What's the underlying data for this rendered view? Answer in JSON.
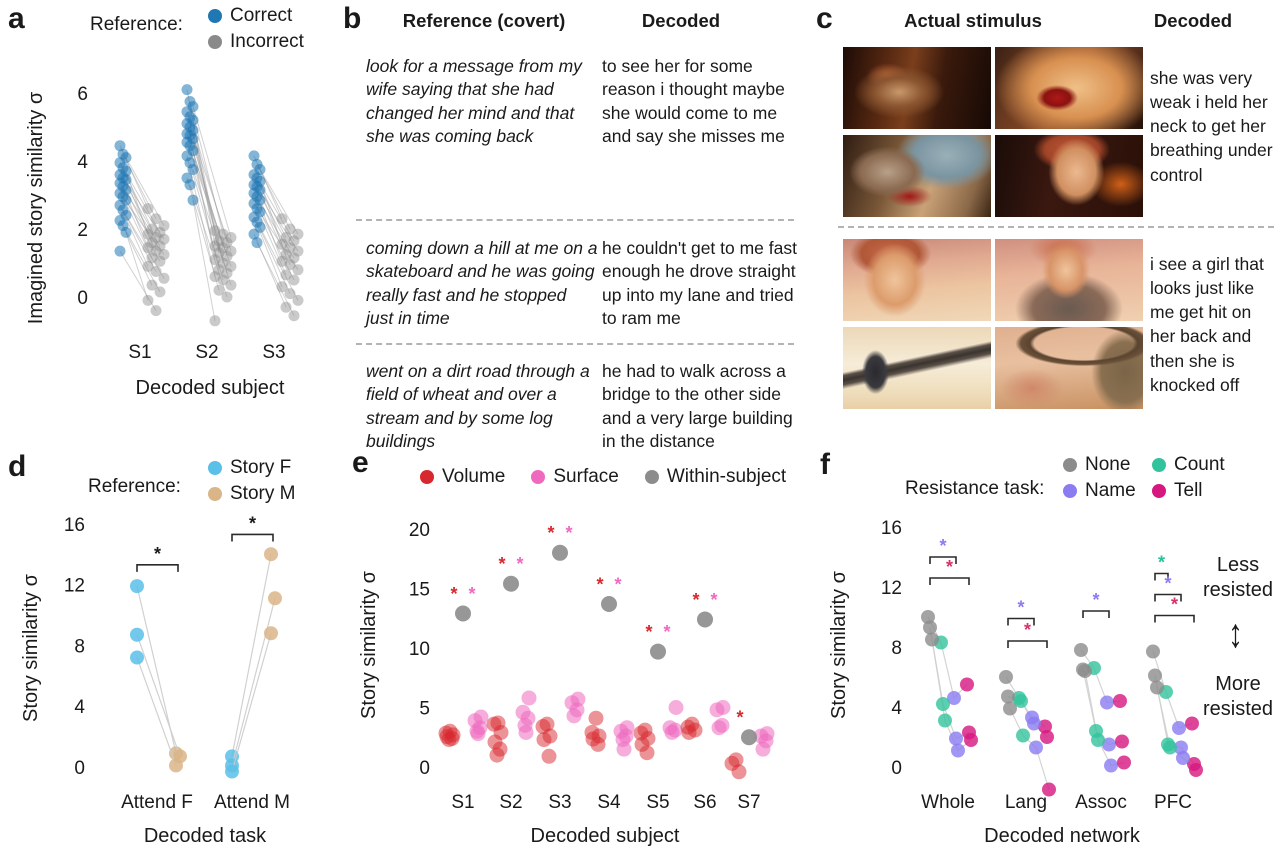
{
  "panel_labels": {
    "a": "a",
    "b": "b",
    "c": "c",
    "d": "d",
    "e": "e",
    "f": "f"
  },
  "panel_b": {
    "col1_header": "Reference (covert)",
    "col2_header": "Decoded",
    "rows": [
      {
        "reference": "look for a message from my wife saying that she had changed her mind and that she was coming back",
        "decoded": "to see her for some reason i thought maybe she would come to me and say she misses me"
      },
      {
        "reference": "coming down a hill at me on a skateboard and he was going really fast and he stopped just in time",
        "decoded": "he couldn't get to me fast enough he drove straight up into my lane and tried to ram me"
      },
      {
        "reference": "went on a dirt road through a field of wheat and over a stream and by some log buildings",
        "decoded": "he had to walk across a bridge to the other side and a very large building in the distance"
      }
    ]
  },
  "panel_c": {
    "col1_header": "Actual stimulus",
    "col2_header": "Decoded",
    "examples": [
      {
        "decoded": "she was very weak i held her neck to get her breathing under control",
        "frames": [
          "tavern-scene",
          "wound-closeup",
          "girl-holding-dragon",
          "girl-face-dark"
        ]
      },
      {
        "decoded": "i see a girl that looks just like me get hit on her back and then she is knocked off",
        "frames": [
          "girl-face-sunset",
          "girl-sunset",
          "figure-on-cable",
          "dragon-tail-sunset"
        ]
      }
    ]
  },
  "chart_data": [
    {
      "id": "a",
      "type": "scatter",
      "subtype": "paired-dot",
      "legend_title": "Reference:",
      "legend": [
        {
          "label": "Correct",
          "color": "#1f77b4"
        },
        {
          "label": "Incorrect",
          "color": "#8a8a8a"
        }
      ],
      "ylabel": "Imagined story similarity σ",
      "xlabel": "Decoded subject",
      "yticks": [
        0,
        2,
        4,
        6
      ],
      "ylim": [
        -1,
        6.5
      ],
      "categories": [
        "S1",
        "S2",
        "S3"
      ],
      "pairs": [
        [
          [
            4.45,
            2.6
          ],
          [
            4.2,
            2.3
          ],
          [
            4.1,
            2.1
          ],
          [
            3.95,
            2.0
          ],
          [
            3.8,
            1.9
          ],
          [
            3.7,
            1.85
          ],
          [
            3.6,
            1.75
          ],
          [
            3.5,
            1.7
          ],
          [
            3.45,
            1.6
          ],
          [
            3.35,
            1.5
          ],
          [
            3.25,
            1.45
          ],
          [
            3.15,
            1.35
          ],
          [
            3.05,
            1.25
          ],
          [
            2.95,
            1.15
          ],
          [
            2.85,
            1.05
          ],
          [
            2.7,
            0.9
          ],
          [
            2.55,
            0.75
          ],
          [
            2.4,
            0.55
          ],
          [
            2.25,
            0.35
          ],
          [
            2.1,
            0.15
          ],
          [
            1.9,
            -0.1
          ],
          [
            1.35,
            -0.4
          ]
        ],
        [
          [
            6.1,
            1.95
          ],
          [
            5.75,
            1.85
          ],
          [
            5.6,
            1.75
          ],
          [
            5.45,
            1.65
          ],
          [
            5.3,
            1.6
          ],
          [
            5.2,
            1.5
          ],
          [
            5.1,
            1.45
          ],
          [
            5.0,
            1.35
          ],
          [
            4.9,
            1.3
          ],
          [
            4.8,
            1.2
          ],
          [
            4.75,
            1.1
          ],
          [
            4.65,
            1.0
          ],
          [
            4.55,
            0.9
          ],
          [
            4.45,
            0.8
          ],
          [
            4.3,
            0.7
          ],
          [
            4.15,
            0.6
          ],
          [
            3.95,
            0.5
          ],
          [
            3.75,
            0.35
          ],
          [
            3.5,
            0.2
          ],
          [
            3.3,
            0.0
          ],
          [
            2.85,
            -0.7
          ]
        ],
        [
          [
            4.15,
            2.3
          ],
          [
            3.9,
            2.0
          ],
          [
            3.75,
            1.85
          ],
          [
            3.6,
            1.75
          ],
          [
            3.5,
            1.65
          ],
          [
            3.4,
            1.55
          ],
          [
            3.3,
            1.45
          ],
          [
            3.25,
            1.35
          ],
          [
            3.15,
            1.25
          ],
          [
            3.05,
            1.15
          ],
          [
            2.95,
            1.05
          ],
          [
            2.85,
            0.95
          ],
          [
            2.75,
            0.8
          ],
          [
            2.6,
            0.65
          ],
          [
            2.5,
            0.5
          ],
          [
            2.35,
            0.3
          ],
          [
            2.2,
            0.1
          ],
          [
            2.05,
            -0.1
          ],
          [
            1.85,
            -0.3
          ],
          [
            1.6,
            -0.55
          ]
        ]
      ]
    },
    {
      "id": "d",
      "type": "scatter",
      "subtype": "paired-dot",
      "legend_title": "Reference:",
      "legend": [
        {
          "label": "Story F",
          "color": "#5bc0e8"
        },
        {
          "label": "Story M",
          "color": "#d9b588"
        }
      ],
      "ylabel": "Story similarity σ",
      "xlabel": "Decoded task",
      "yticks": [
        0,
        4,
        8,
        12,
        16
      ],
      "ylim": [
        -1,
        17
      ],
      "categories": [
        "Attend F",
        "Attend M"
      ],
      "pairs": [
        [
          [
            11.9,
            0.9
          ],
          [
            8.7,
            0.7
          ],
          [
            7.2,
            0.1
          ]
        ],
        [
          [
            0.7,
            14.0
          ],
          [
            0.1,
            11.1
          ],
          [
            -0.3,
            8.8
          ]
        ]
      ],
      "brackets": [
        {
          "category": 0,
          "y": 13.3,
          "label": "*",
          "color": "#1a1a1a"
        },
        {
          "category": 1,
          "y": 15.3,
          "label": "*",
          "color": "#1a1a1a"
        }
      ]
    },
    {
      "id": "e",
      "type": "scatter",
      "subtype": "cluster-dot",
      "legend": [
        {
          "label": "Volume",
          "color": "#d7282e"
        },
        {
          "label": "Surface",
          "color": "#ef6abf"
        },
        {
          "label": "Within-subject",
          "color": "#8c8c8c"
        }
      ],
      "ylabel": "Story similarity σ",
      "xlabel": "Decoded subject",
      "yticks": [
        0,
        5,
        10,
        15,
        20
      ],
      "ylim": [
        -1.5,
        20
      ],
      "categories": [
        "S1",
        "S2",
        "S3",
        "S4",
        "S5",
        "S6",
        "S7"
      ],
      "volume": [
        [
          3.0,
          2.85,
          2.7,
          2.55,
          2.4,
          2.3
        ],
        [
          3.7,
          3.6,
          2.9,
          2.1,
          1.5,
          1.0
        ],
        [
          3.6,
          3.4,
          2.6,
          2.3,
          0.9
        ],
        [
          4.1,
          2.9,
          2.6,
          2.35,
          1.9
        ],
        [
          3.1,
          2.85,
          2.4,
          1.9,
          1.2
        ],
        [
          3.6,
          3.35,
          3.1,
          2.9
        ],
        [
          0.6,
          0.3,
          -0.4
        ]
      ],
      "surface": [
        [
          4.2,
          3.9,
          3.3,
          3.0,
          2.8
        ],
        [
          5.8,
          4.6,
          4.1,
          3.5,
          2.9
        ],
        [
          5.7,
          5.4,
          4.8,
          4.3
        ],
        [
          3.3,
          3.0,
          2.6,
          2.3,
          1.5
        ],
        [
          5.0,
          3.3,
          3.1,
          2.9
        ],
        [
          5.0,
          4.8,
          3.5,
          3.3
        ],
        [
          2.8,
          2.6,
          2.2,
          1.5
        ]
      ],
      "within_subject": [
        12.9,
        15.4,
        18.0,
        13.7,
        9.7,
        12.4,
        2.5
      ],
      "significance_stars": [
        [
          "volume",
          "surface"
        ],
        [
          "volume",
          "surface"
        ],
        [
          "volume",
          "surface"
        ],
        [
          "volume",
          "surface"
        ],
        [
          "volume",
          "surface"
        ],
        [
          "volume",
          "surface"
        ],
        [
          "volume"
        ]
      ]
    },
    {
      "id": "f",
      "type": "scatter",
      "subtype": "task-lines",
      "legend_title": "Resistance task:",
      "legend": [
        {
          "label": "None",
          "color": "#8c8c8c"
        },
        {
          "label": "Name",
          "color": "#8b7cf2"
        },
        {
          "label": "Count",
          "color": "#33c39c"
        },
        {
          "label": "Tell",
          "color": "#d6177f"
        }
      ],
      "ylabel": "Story similarity σ",
      "xlabel": "Decoded network",
      "yticks": [
        0,
        4,
        8,
        12,
        16
      ],
      "ylim": [
        -2,
        17
      ],
      "categories": [
        "Whole",
        "Lang",
        "Assoc",
        "PFC"
      ],
      "task_order": [
        "none",
        "count",
        "name",
        "tell"
      ],
      "subjects": [
        [
          [
            10.0,
            8.3,
            4.6,
            5.5
          ],
          [
            9.3,
            4.2,
            1.9,
            2.3
          ],
          [
            8.5,
            3.1,
            1.1,
            1.8
          ]
        ],
        [
          [
            6.0,
            4.6,
            3.3,
            2.7
          ],
          [
            4.7,
            4.4,
            2.9,
            2.0
          ],
          [
            3.9,
            2.1,
            1.3,
            -1.5
          ]
        ],
        [
          [
            7.8,
            6.6,
            4.3,
            4.4
          ],
          [
            6.5,
            2.4,
            1.5,
            1.7
          ],
          [
            6.4,
            1.8,
            0.1,
            0.3
          ]
        ],
        [
          [
            7.7,
            5.0,
            2.6,
            2.9
          ],
          [
            6.1,
            1.5,
            1.3,
            0.2
          ],
          [
            5.3,
            1.3,
            0.6,
            -0.2
          ]
        ]
      ],
      "brackets": [
        {
          "category": 0,
          "from": "none",
          "to": "name",
          "y": 14.0,
          "label": "*",
          "color": "#8b7cf2"
        },
        {
          "category": 0,
          "from": "none",
          "to": "tell",
          "y": 12.6,
          "label": "*",
          "color": "#d6336c"
        },
        {
          "category": 1,
          "from": "none",
          "to": "name",
          "y": 9.9,
          "label": "*",
          "color": "#8b7cf2"
        },
        {
          "category": 1,
          "from": "none",
          "to": "tell",
          "y": 8.4,
          "label": "*",
          "color": "#d6336c"
        },
        {
          "category": 2,
          "from": "none",
          "to": "name",
          "y": 10.4,
          "label": "*",
          "color": "#8b7cf2"
        },
        {
          "category": 3,
          "from": "none",
          "to": "count",
          "y": 12.9,
          "label": "*",
          "color": "#2bbf9a"
        },
        {
          "category": 3,
          "from": "none",
          "to": "name",
          "y": 11.5,
          "label": "*",
          "color": "#8b7cf2"
        },
        {
          "category": 3,
          "from": "none",
          "to": "tell",
          "y": 10.1,
          "label": "*",
          "color": "#d6336c"
        }
      ],
      "annotations": {
        "less": "Less resisted",
        "more": "More resisted"
      }
    }
  ]
}
